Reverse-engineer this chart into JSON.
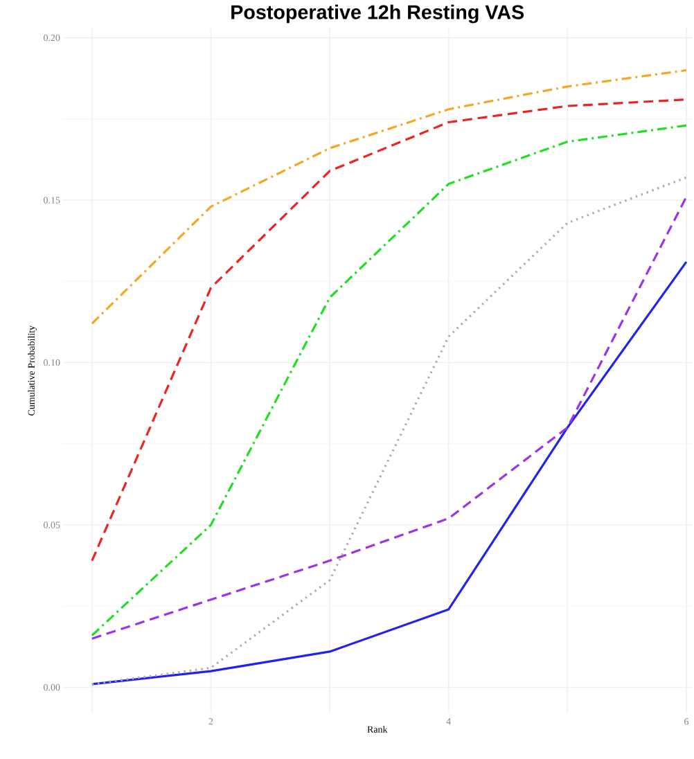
{
  "chart_data": {
    "type": "line",
    "title": "Postoperative 12h Resting VAS",
    "xlabel": "Rank",
    "ylabel": "Cumulative Probability",
    "x": [
      1,
      2,
      3,
      4,
      5,
      6
    ],
    "xlim": [
      0.75,
      6.05
    ],
    "ylim": [
      -0.008,
      0.203
    ],
    "xticks": [
      {
        "value": 1,
        "label": null
      },
      2,
      {
        "value": 3,
        "label": null
      },
      4,
      {
        "value": 5,
        "label": null
      },
      6
    ],
    "yticks": [
      {
        "value": 0,
        "label": "0.00"
      },
      0.05,
      {
        "value": 0.1,
        "label": "0.10"
      },
      0.15,
      {
        "value": 0.2,
        "label": "0.20"
      }
    ],
    "grid": true,
    "marker": "none",
    "series": [
      {
        "color": "#f5a623",
        "line_style": "dashdot",
        "values": [
          0.112,
          0.148,
          0.166,
          0.178,
          0.185,
          0.19
        ]
      },
      {
        "color": "#ee2222",
        "line_style": "dashed",
        "values": [
          0.039,
          0.123,
          0.159,
          0.174,
          0.179,
          0.181
        ]
      },
      {
        "color": "#22dd22",
        "line_style": "dashdot",
        "values": [
          0.016,
          0.05,
          0.12,
          0.155,
          0.168,
          0.173
        ]
      },
      {
        "color": "#aaaaaa",
        "line_style": "dotted",
        "values": [
          0.001,
          0.006,
          0.033,
          0.108,
          0.143,
          0.157
        ]
      },
      {
        "color": "#9933ee",
        "line_style": "dashed",
        "values": [
          0.015,
          0.027,
          0.039,
          0.052,
          0.08,
          0.151
        ]
      },
      {
        "color": "#2222ee",
        "line_style": "solid",
        "values": [
          0.001,
          0.005,
          0.011,
          0.024,
          0.08,
          0.131
        ]
      }
    ]
  }
}
